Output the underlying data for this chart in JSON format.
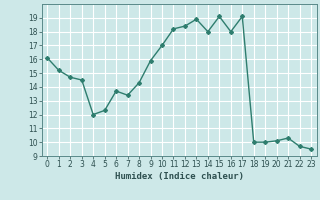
{
  "x": [
    0,
    1,
    2,
    3,
    4,
    5,
    6,
    7,
    8,
    9,
    10,
    11,
    12,
    13,
    14,
    15,
    16,
    17,
    18,
    19,
    20,
    21,
    22,
    23
  ],
  "y": [
    16.1,
    15.2,
    14.7,
    14.5,
    12.0,
    12.3,
    13.7,
    13.4,
    14.3,
    15.9,
    17.0,
    18.2,
    18.4,
    18.9,
    18.0,
    19.1,
    18.0,
    19.1,
    10.0,
    10.0,
    10.1,
    10.3,
    9.7,
    9.5
  ],
  "line_color": "#2e7d6e",
  "marker": "D",
  "marker_size": 2.0,
  "line_width": 1.0,
  "bg_color": "#cde8e8",
  "grid_color": "#ffffff",
  "xlabel": "Humidex (Indice chaleur)",
  "ylim": [
    9,
    20
  ],
  "xlim": [
    -0.5,
    23.5
  ],
  "yticks": [
    9,
    10,
    11,
    12,
    13,
    14,
    15,
    16,
    17,
    18,
    19
  ],
  "xticks": [
    0,
    1,
    2,
    3,
    4,
    5,
    6,
    7,
    8,
    9,
    10,
    11,
    12,
    13,
    14,
    15,
    16,
    17,
    18,
    19,
    20,
    21,
    22,
    23
  ],
  "tick_fontsize": 5.5,
  "label_fontsize": 6.5
}
